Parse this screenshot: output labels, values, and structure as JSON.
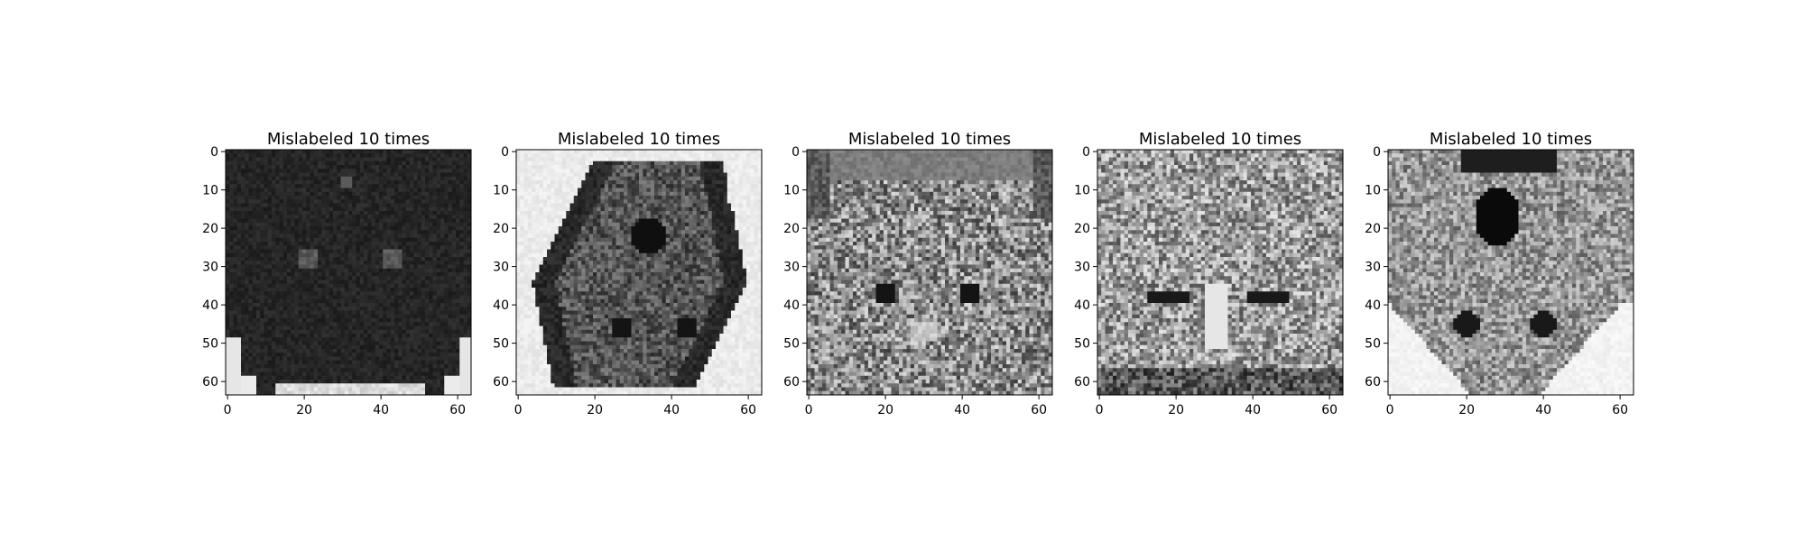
{
  "figure": {
    "panels": [
      {
        "title": "Mislabeled 10 times",
        "image_description": "dark grayscale cat face, mostly black fur"
      },
      {
        "title": "Mislabeled 10 times",
        "image_description": "upside-down grayscale cat image on white background"
      },
      {
        "title": "Mislabeled 10 times",
        "image_description": "grayscale tortoiseshell cat face looking forward"
      },
      {
        "title": "Mislabeled 10 times",
        "image_description": "grayscale tabby cat face with squinted eyes"
      },
      {
        "title": "Mislabeled 10 times",
        "image_description": "upside-down grayscale cat with open mouth on white background"
      }
    ],
    "axes": {
      "x_ticks": [
        "0",
        "20",
        "40",
        "60"
      ],
      "y_ticks": [
        "0",
        "10",
        "20",
        "30",
        "40",
        "50",
        "60"
      ],
      "x_range": [
        -0.5,
        63.5
      ],
      "y_range": [
        -0.5,
        63.5
      ],
      "y_inverted": true
    },
    "colormap": "gray"
  }
}
